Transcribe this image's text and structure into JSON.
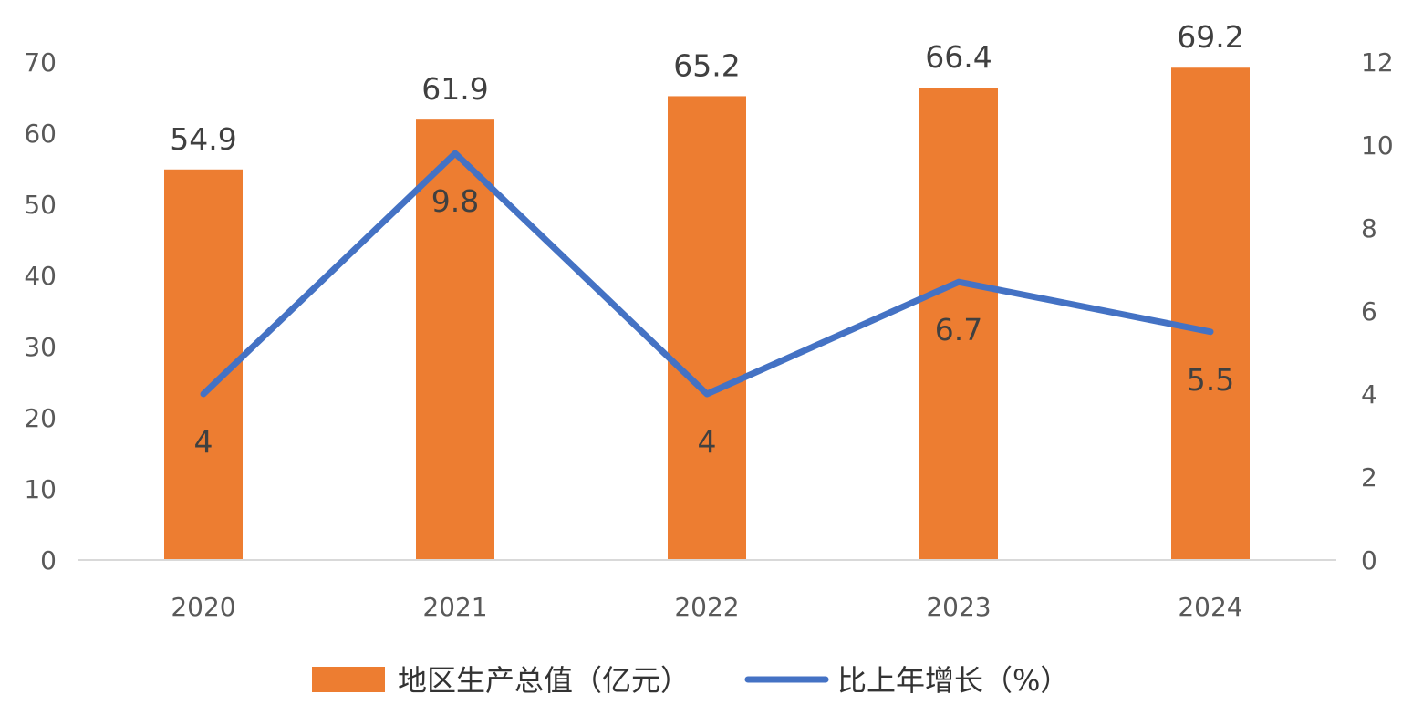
{
  "chart_data": {
    "type": "bar",
    "categories": [
      "2020",
      "2021",
      "2022",
      "2023",
      "2024"
    ],
    "series": [
      {
        "name": "地区生产总值（亿元）",
        "type": "bar",
        "axis": "left",
        "values": [
          54.9,
          61.9,
          65.2,
          66.4,
          69.2
        ],
        "labels": [
          "54.9",
          "61.9",
          "65.2",
          "66.4",
          "69.2"
        ]
      },
      {
        "name": "比上年增长（%）",
        "type": "line",
        "axis": "right",
        "values": [
          4,
          9.8,
          4,
          6.7,
          5.5
        ],
        "labels": [
          "4",
          "9.8",
          "4",
          "6.7",
          "5.5"
        ]
      }
    ],
    "y_left": {
      "ylim": [
        0,
        70
      ],
      "ticks": [
        "0",
        "10",
        "20",
        "30",
        "40",
        "50",
        "60",
        "70"
      ]
    },
    "y_right": {
      "ylim": [
        0,
        12
      ],
      "ticks": [
        "0",
        "2",
        "4",
        "6",
        "8",
        "10",
        "12"
      ]
    },
    "title": "",
    "xlabel": "",
    "ylabel": "",
    "grid": false,
    "legend": "bottom",
    "colors": {
      "bar": "#ED7D31",
      "line": "#4472C4",
      "text": "#404040",
      "axis": "#D9D9D9"
    }
  }
}
